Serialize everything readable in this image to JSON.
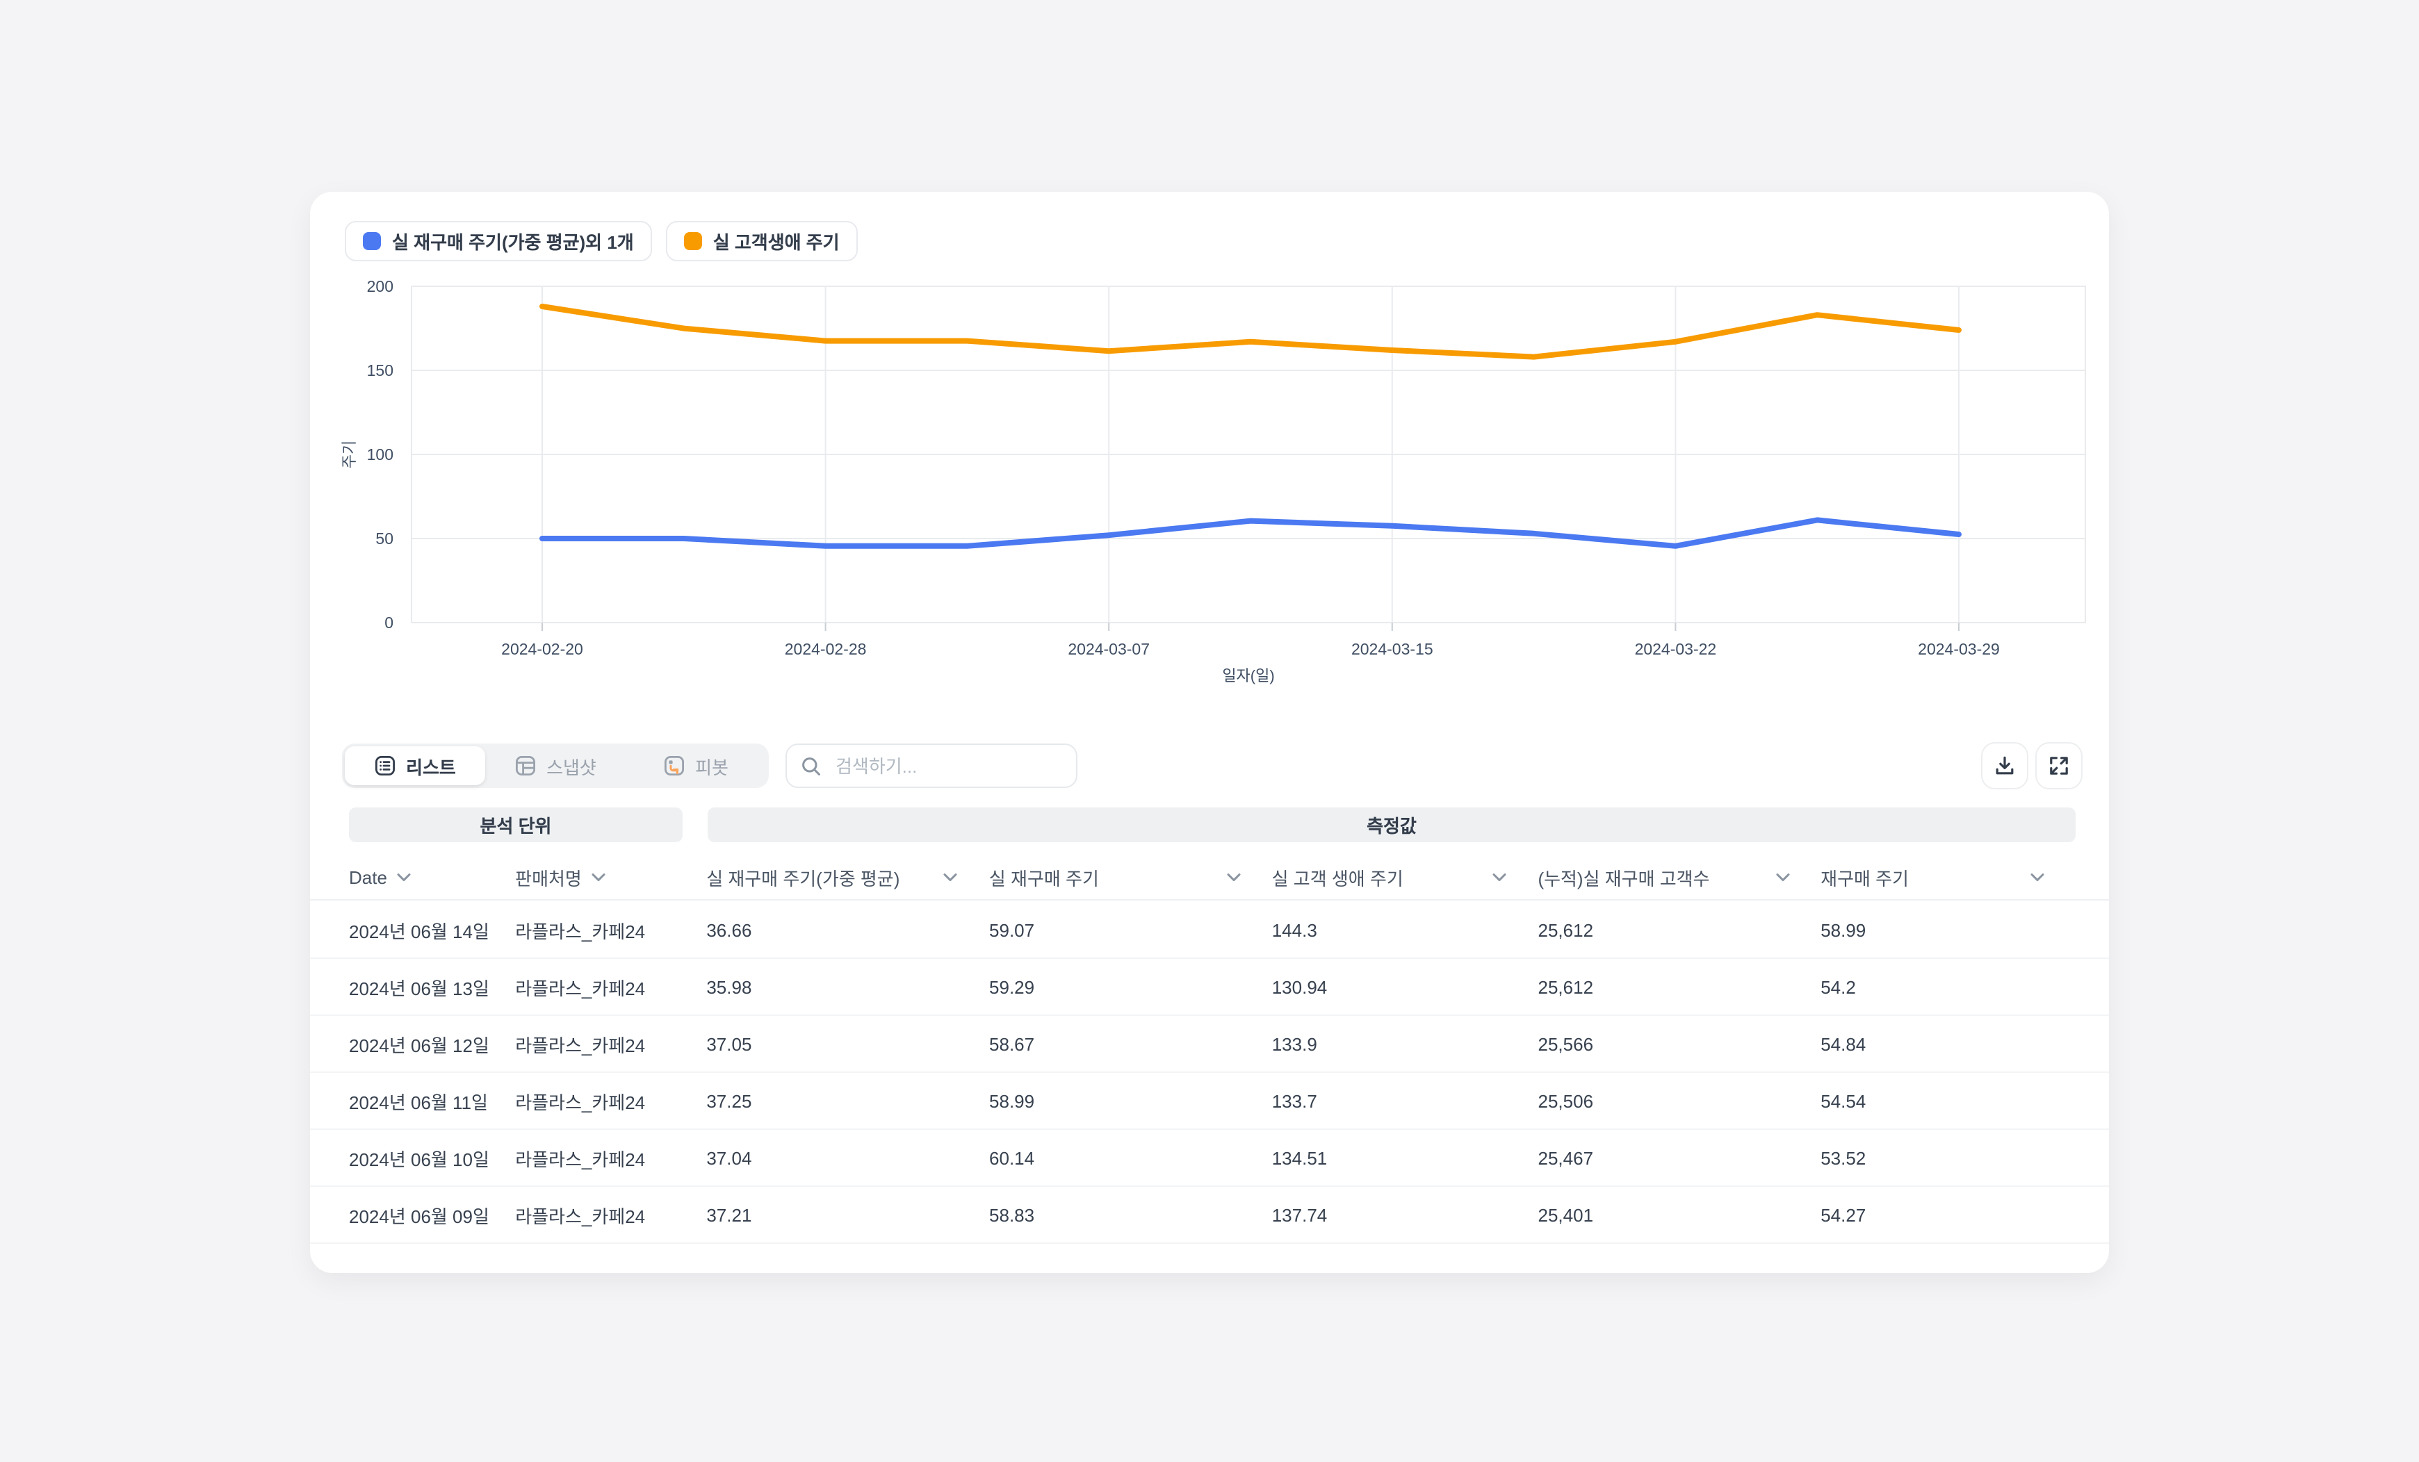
{
  "colors": {
    "blue": "#4b79f1",
    "orange": "#f89b00",
    "page_bg": "#f4f4f6",
    "grid": "#e9ebee",
    "axis_text": "#3f4e63"
  },
  "legend": {
    "items": [
      {
        "label": "실 재구매 주기(가중 평균)외 1개",
        "color": "#4b79f1"
      },
      {
        "label": "실 고객생애 주기",
        "color": "#f89b00"
      }
    ]
  },
  "chart_data": {
    "type": "line",
    "title": "",
    "xlabel": "일자(일)",
    "ylabel": "주기",
    "ylim": [
      0,
      200
    ],
    "yticks": [
      0,
      50,
      100,
      150,
      200
    ],
    "grid": true,
    "legend_position": "top-left",
    "x_tick_labels": [
      "2024-02-20",
      "2024-02-28",
      "2024-03-07",
      "2024-03-15",
      "2024-03-22",
      "2024-03-29"
    ],
    "tick_indices": [
      0,
      2,
      4,
      6,
      8,
      10
    ],
    "series": [
      {
        "name": "실 재구매 주기(가중 평균)외 1개",
        "color": "#4b79f1",
        "values": [
          50,
          50,
          45.5,
          45.5,
          52,
          60.5,
          57.5,
          53,
          45.5,
          61,
          52.5
        ]
      },
      {
        "name": "실 고객생애 주기",
        "color": "#f89b00",
        "values": [
          188,
          175,
          167.5,
          167.5,
          161.5,
          167,
          162,
          158,
          167,
          183,
          174
        ]
      }
    ]
  },
  "toolbar": {
    "tabs": [
      {
        "label": "리스트",
        "icon": "list-icon",
        "active": true
      },
      {
        "label": "스냅샷",
        "icon": "snapshot-icon",
        "active": false
      },
      {
        "label": "피봇",
        "icon": "pivot-icon",
        "active": false
      }
    ],
    "search_placeholder": "검색하기...",
    "search_value": "",
    "buttons": [
      {
        "name": "download-button",
        "icon": "download-icon"
      },
      {
        "name": "expand-button",
        "icon": "expand-icon"
      }
    ]
  },
  "table": {
    "group_headers": [
      {
        "label": "분석 단위"
      },
      {
        "label": "측정값"
      }
    ],
    "columns": [
      "Date",
      "판매처명",
      "실 재구매 주기(가중 평균)",
      "실 재구매 주기",
      "실 고객 생애 주기",
      "(누적)실 재구매 고객수",
      "재구매 주기"
    ],
    "rows": [
      [
        "2024년 06월 14일",
        "라플라스_카페24",
        "36.66",
        "59.07",
        "144.3",
        "25,612",
        "58.99"
      ],
      [
        "2024년 06월 13일",
        "라플라스_카페24",
        "35.98",
        "59.29",
        "130.94",
        "25,612",
        "54.2"
      ],
      [
        "2024년 06월 12일",
        "라플라스_카페24",
        "37.05",
        "58.67",
        "133.9",
        "25,566",
        "54.84"
      ],
      [
        "2024년 06월 11일",
        "라플라스_카페24",
        "37.25",
        "58.99",
        "133.7",
        "25,506",
        "54.54"
      ],
      [
        "2024년 06월 10일",
        "라플라스_카페24",
        "37.04",
        "60.14",
        "134.51",
        "25,467",
        "53.52"
      ],
      [
        "2024년 06월 09일",
        "라플라스_카페24",
        "37.21",
        "58.83",
        "137.74",
        "25,401",
        "54.27"
      ]
    ]
  }
}
